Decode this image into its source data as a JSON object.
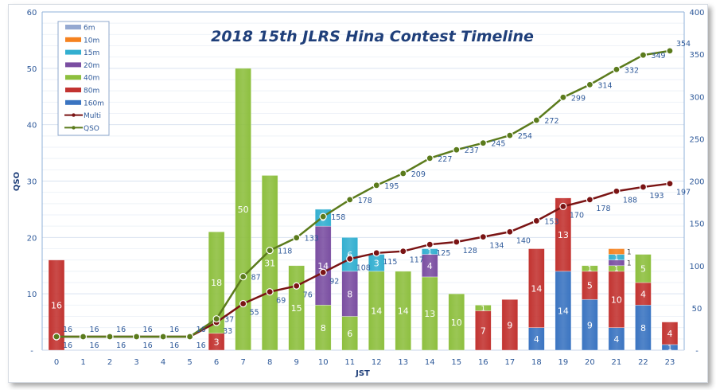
{
  "chart_data": {
    "type": "bar",
    "stacked": true,
    "title": "2018 15th JLRS Hina Contest Timeline",
    "xlabel": "JST",
    "ylabel": "QSO",
    "ylim": [
      0,
      60
    ],
    "y2lim": [
      0,
      400
    ],
    "yticks": [
      "-",
      "10",
      "20",
      "30",
      "40",
      "50",
      "60"
    ],
    "y2ticks": [
      "-",
      "50",
      "100",
      "150",
      "200",
      "250",
      "300",
      "350",
      "400"
    ],
    "grid": true,
    "legend_placement": "top-left",
    "categories": [
      "0",
      "1",
      "2",
      "3",
      "4",
      "5",
      "6",
      "7",
      "8",
      "9",
      "10",
      "11",
      "12",
      "13",
      "14",
      "15",
      "16",
      "17",
      "18",
      "19",
      "20",
      "21",
      "22",
      "23"
    ],
    "series": [
      {
        "name": "160m",
        "color": "#3a74c1",
        "values": [
          0,
          0,
          0,
          0,
          0,
          0,
          0,
          0,
          0,
          0,
          0,
          0,
          0,
          0,
          0,
          0,
          0,
          0,
          4,
          14,
          9,
          4,
          8,
          1
        ]
      },
      {
        "name": "80m",
        "color": "#c23330",
        "values": [
          16,
          0,
          0,
          0,
          0,
          0,
          3,
          0,
          0,
          0,
          0,
          0,
          0,
          0,
          0,
          0,
          7,
          9,
          14,
          13,
          5,
          10,
          4,
          4
        ]
      },
      {
        "name": "40m",
        "color": "#8dbf3e",
        "values": [
          0,
          0,
          0,
          0,
          0,
          0,
          18,
          50,
          31,
          15,
          8,
          6,
          14,
          14,
          13,
          10,
          1,
          0,
          0,
          0,
          1,
          1,
          5,
          0
        ]
      },
      {
        "name": "20m",
        "color": "#7a4ea1",
        "values": [
          0,
          0,
          0,
          0,
          0,
          0,
          0,
          0,
          0,
          0,
          14,
          8,
          0,
          0,
          4,
          0,
          0,
          0,
          0,
          0,
          0,
          1,
          0,
          0
        ]
      },
      {
        "name": "15m",
        "color": "#33afd0",
        "values": [
          0,
          0,
          0,
          0,
          0,
          0,
          0,
          0,
          0,
          0,
          3,
          6,
          3,
          0,
          1,
          0,
          0,
          0,
          0,
          0,
          0,
          1,
          0,
          0
        ]
      },
      {
        "name": "10m",
        "color": "#f5821f",
        "values": [
          0,
          0,
          0,
          0,
          0,
          0,
          0,
          0,
          0,
          0,
          0,
          0,
          0,
          0,
          0,
          0,
          0,
          0,
          0,
          0,
          0,
          1,
          0,
          0
        ]
      },
      {
        "name": "6m",
        "color": "#95a9d1",
        "values": [
          0,
          0,
          0,
          0,
          0,
          0,
          0,
          0,
          0,
          0,
          0,
          0,
          0,
          0,
          0,
          0,
          0,
          0,
          0,
          0,
          0,
          0,
          0,
          0
        ]
      }
    ],
    "lines": [
      {
        "name": "Multi",
        "color": "#7a1414",
        "axis": "right",
        "values": [
          16,
          16,
          16,
          16,
          16,
          16,
          33,
          55,
          69,
          76,
          92,
          108,
          115,
          117,
          125,
          128,
          134,
          140,
          153,
          170,
          178,
          188,
          193,
          197
        ]
      },
      {
        "name": "QSO",
        "color": "#5b7b1c",
        "axis": "right",
        "values": [
          16,
          16,
          16,
          16,
          16,
          16,
          37,
          87,
          118,
          133,
          158,
          178,
          195,
          209,
          227,
          237,
          245,
          254,
          272,
          299,
          314,
          332,
          349,
          354
        ]
      }
    ],
    "legend_order": [
      "6m",
      "10m",
      "15m",
      "20m",
      "40m",
      "80m",
      "160m",
      "Multi",
      "QSO"
    ]
  }
}
